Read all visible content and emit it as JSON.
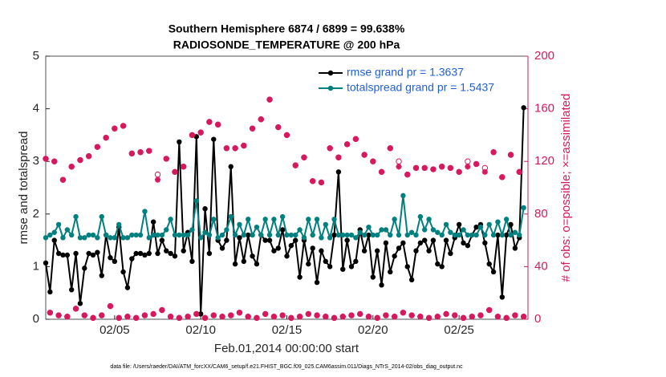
{
  "chart_data": {
    "type": "line",
    "title": "Southern Hemisphere 6874 / 6899 = 99.638%",
    "subtitle": "RADIOSONDE_TEMPERATURE @ 200 hPa",
    "ylabel": "rmse and totalspread",
    "y2label": "# of obs: o=possible; ×=assimilated",
    "xlabel": "Feb.01,2014 00:00:00 start",
    "footnote": "data file: /Users/raeder/DAI/ATM_forcXX/CAM6_setup/f.e21.FHIST_BGC.f09_025.CAM6assim.011/Diags_NTrS_2014-02/obs_diag_output.nc",
    "legend": "top-right",
    "xlim": [
      1,
      29
    ],
    "xticks": [
      {
        "value": 5,
        "label": "02/05"
      },
      {
        "value": 10,
        "label": "02/10"
      },
      {
        "value": 15,
        "label": "02/15"
      },
      {
        "value": 20,
        "label": "02/20"
      },
      {
        "value": 25,
        "label": "02/25"
      }
    ],
    "ylim": [
      0,
      5
    ],
    "yticks": [
      0,
      1,
      2,
      3,
      4,
      5
    ],
    "y2lim": [
      0,
      200
    ],
    "y2ticks": [
      0,
      40,
      80,
      120,
      160,
      200
    ],
    "y2color": "#d6195f",
    "x": [
      1,
      1.25,
      1.5,
      1.75,
      2,
      2.25,
      2.5,
      2.75,
      3,
      3.25,
      3.5,
      3.75,
      4,
      4.25,
      4.5,
      4.75,
      5,
      5.25,
      5.5,
      5.75,
      6,
      6.25,
      6.5,
      6.75,
      7,
      7.25,
      7.5,
      7.75,
      8,
      8.25,
      8.5,
      8.75,
      9,
      9.25,
      9.5,
      9.75,
      10,
      10.25,
      10.5,
      10.75,
      11,
      11.25,
      11.5,
      11.75,
      12,
      12.25,
      12.5,
      12.75,
      13,
      13.25,
      13.5,
      13.75,
      14,
      14.25,
      14.5,
      14.75,
      15,
      15.25,
      15.5,
      15.75,
      16,
      16.25,
      16.5,
      16.75,
      17,
      17.25,
      17.5,
      17.75,
      18,
      18.25,
      18.5,
      18.75,
      19,
      19.25,
      19.5,
      19.75,
      20,
      20.25,
      20.5,
      20.75,
      21,
      21.25,
      21.5,
      21.75,
      22,
      22.25,
      22.5,
      22.75,
      23,
      23.25,
      23.5,
      23.75,
      24,
      24.25,
      24.5,
      24.75,
      25,
      25.25,
      25.5,
      25.75,
      26,
      26.25,
      26.5,
      26.75,
      27,
      27.25,
      27.5,
      27.75,
      28,
      28.25,
      28.5,
      28.75
    ],
    "series": [
      {
        "name": "rmse grand pr = 1.3637",
        "color": "#000000",
        "marker": "filled-circle",
        "line": true,
        "values": [
          1.07,
          0.52,
          1.5,
          1.25,
          1.22,
          1.22,
          0.56,
          1.25,
          0.3,
          0.97,
          1.25,
          1.22,
          1.27,
          0.83,
          1.6,
          1.17,
          1.1,
          1.75,
          0.9,
          0.6,
          1.15,
          1.25,
          1.25,
          1.22,
          1.25,
          1.85,
          1.25,
          1.5,
          1.3,
          1.25,
          1.2,
          3.37,
          1.3,
          1.65,
          1.1,
          3.47,
          0.1,
          2.1,
          1.25,
          3.42,
          1.5,
          1.35,
          1.5,
          2.9,
          1.05,
          1.55,
          1.1,
          1.6,
          1.2,
          1.05,
          1.6,
          1.5,
          1.5,
          1.3,
          1.35,
          1.7,
          1.2,
          1.4,
          1.5,
          0.8,
          1.5,
          1.05,
          1.35,
          0.7,
          1.3,
          1.1,
          1.0,
          1.6,
          2.8,
          0.95,
          1.5,
          1.0,
          1.1,
          1.7,
          1.3,
          1.6,
          0.8,
          1.3,
          0.65,
          1.45,
          0.9,
          1.2,
          1.35,
          1.45,
          1.0,
          0.75,
          1.3,
          1.45,
          1.5,
          1.3,
          1.5,
          1.05,
          1.0,
          1.5,
          1.25,
          1.55,
          1.8,
          1.45,
          1.4,
          1.6,
          1.75,
          1.8,
          1.45,
          1.05,
          0.9,
          1.6,
          0.42,
          1.6,
          1.8,
          1.35,
          1.55,
          4.02
        ]
      },
      {
        "name": "totalspread grand pr = 1.5437",
        "color": "#00807f",
        "marker": "filled-circle",
        "line": true,
        "values": [
          1.55,
          1.6,
          1.65,
          1.8,
          1.55,
          1.7,
          1.6,
          1.95,
          1.55,
          1.55,
          1.6,
          1.6,
          1.55,
          1.95,
          1.6,
          1.55,
          1.55,
          1.8,
          1.55,
          1.55,
          1.6,
          1.6,
          1.6,
          2.05,
          1.55,
          1.6,
          1.6,
          1.6,
          1.7,
          1.9,
          1.6,
          1.6,
          1.6,
          1.6,
          1.7,
          2.25,
          1.55,
          1.65,
          1.6,
          1.9,
          1.55,
          1.6,
          1.7,
          1.95,
          1.6,
          1.8,
          1.6,
          1.9,
          1.6,
          1.75,
          1.6,
          1.9,
          1.6,
          1.9,
          1.6,
          1.95,
          1.6,
          1.6,
          1.6,
          1.7,
          1.55,
          1.9,
          1.6,
          1.9,
          1.55,
          1.8,
          1.55,
          1.9,
          1.6,
          1.6,
          1.6,
          1.6,
          1.55,
          1.65,
          1.6,
          1.75,
          1.6,
          1.6,
          1.7,
          1.7,
          1.6,
          1.9,
          1.6,
          2.35,
          1.6,
          1.65,
          1.6,
          1.95,
          1.7,
          1.9,
          1.7,
          1.65,
          1.6,
          1.8,
          1.65,
          1.6,
          1.6,
          1.7,
          1.6,
          1.6,
          1.6,
          1.75,
          1.6,
          1.8,
          1.6,
          1.85,
          1.6,
          1.9,
          1.6,
          1.65,
          1.6,
          2.12
        ]
      },
      {
        "color": "#d6195f",
        "marker": "circle",
        "line": false,
        "axis": "y2",
        "values": [
          122,
          5,
          120,
          3,
          106,
          2,
          116,
          8,
          121,
          3,
          124,
          1,
          131,
          3,
          138,
          10,
          145,
          1,
          147,
          2,
          126,
          1,
          127,
          3,
          128,
          4,
          110,
          7,
          122,
          2,
          112,
          1,
          116,
          2,
          140,
          4,
          142,
          1,
          150,
          3,
          148,
          2,
          130,
          3,
          130,
          5,
          132,
          2,
          145,
          1,
          152,
          4,
          167,
          2,
          146,
          3,
          140,
          1,
          117,
          2,
          123,
          4,
          105,
          3,
          104,
          2,
          130,
          1,
          123,
          2,
          133,
          3,
          137,
          4,
          125,
          2,
          120,
          1,
          112,
          3,
          130,
          2,
          120,
          5,
          110,
          3,
          115,
          2,
          115,
          1,
          114,
          2,
          116,
          4,
          115,
          3,
          112,
          1,
          120,
          2,
          118,
          3,
          115,
          7,
          127,
          2,
          108,
          1,
          125,
          3,
          112,
          2
        ]
      },
      {
        "color": "#d6195f",
        "marker": "asterisk",
        "line": false,
        "axis": "y2",
        "values": [
          122,
          5,
          120,
          3,
          106,
          2,
          116,
          8,
          121,
          3,
          124,
          1,
          131,
          3,
          138,
          10,
          145,
          1,
          147,
          2,
          126,
          1,
          127,
          3,
          128,
          4,
          106,
          7,
          122,
          2,
          112,
          1,
          116,
          2,
          140,
          4,
          142,
          1,
          150,
          3,
          148,
          2,
          130,
          3,
          130,
          5,
          132,
          2,
          145,
          1,
          152,
          4,
          167,
          2,
          146,
          3,
          140,
          1,
          117,
          2,
          123,
          4,
          105,
          3,
          104,
          2,
          130,
          1,
          123,
          2,
          133,
          3,
          137,
          4,
          125,
          2,
          120,
          1,
          112,
          3,
          130,
          2,
          116,
          5,
          110,
          3,
          115,
          2,
          115,
          1,
          114,
          2,
          116,
          4,
          115,
          3,
          112,
          1,
          116,
          2,
          118,
          3,
          112,
          7,
          127,
          2,
          108,
          1,
          125,
          3,
          112,
          2
        ]
      }
    ]
  }
}
